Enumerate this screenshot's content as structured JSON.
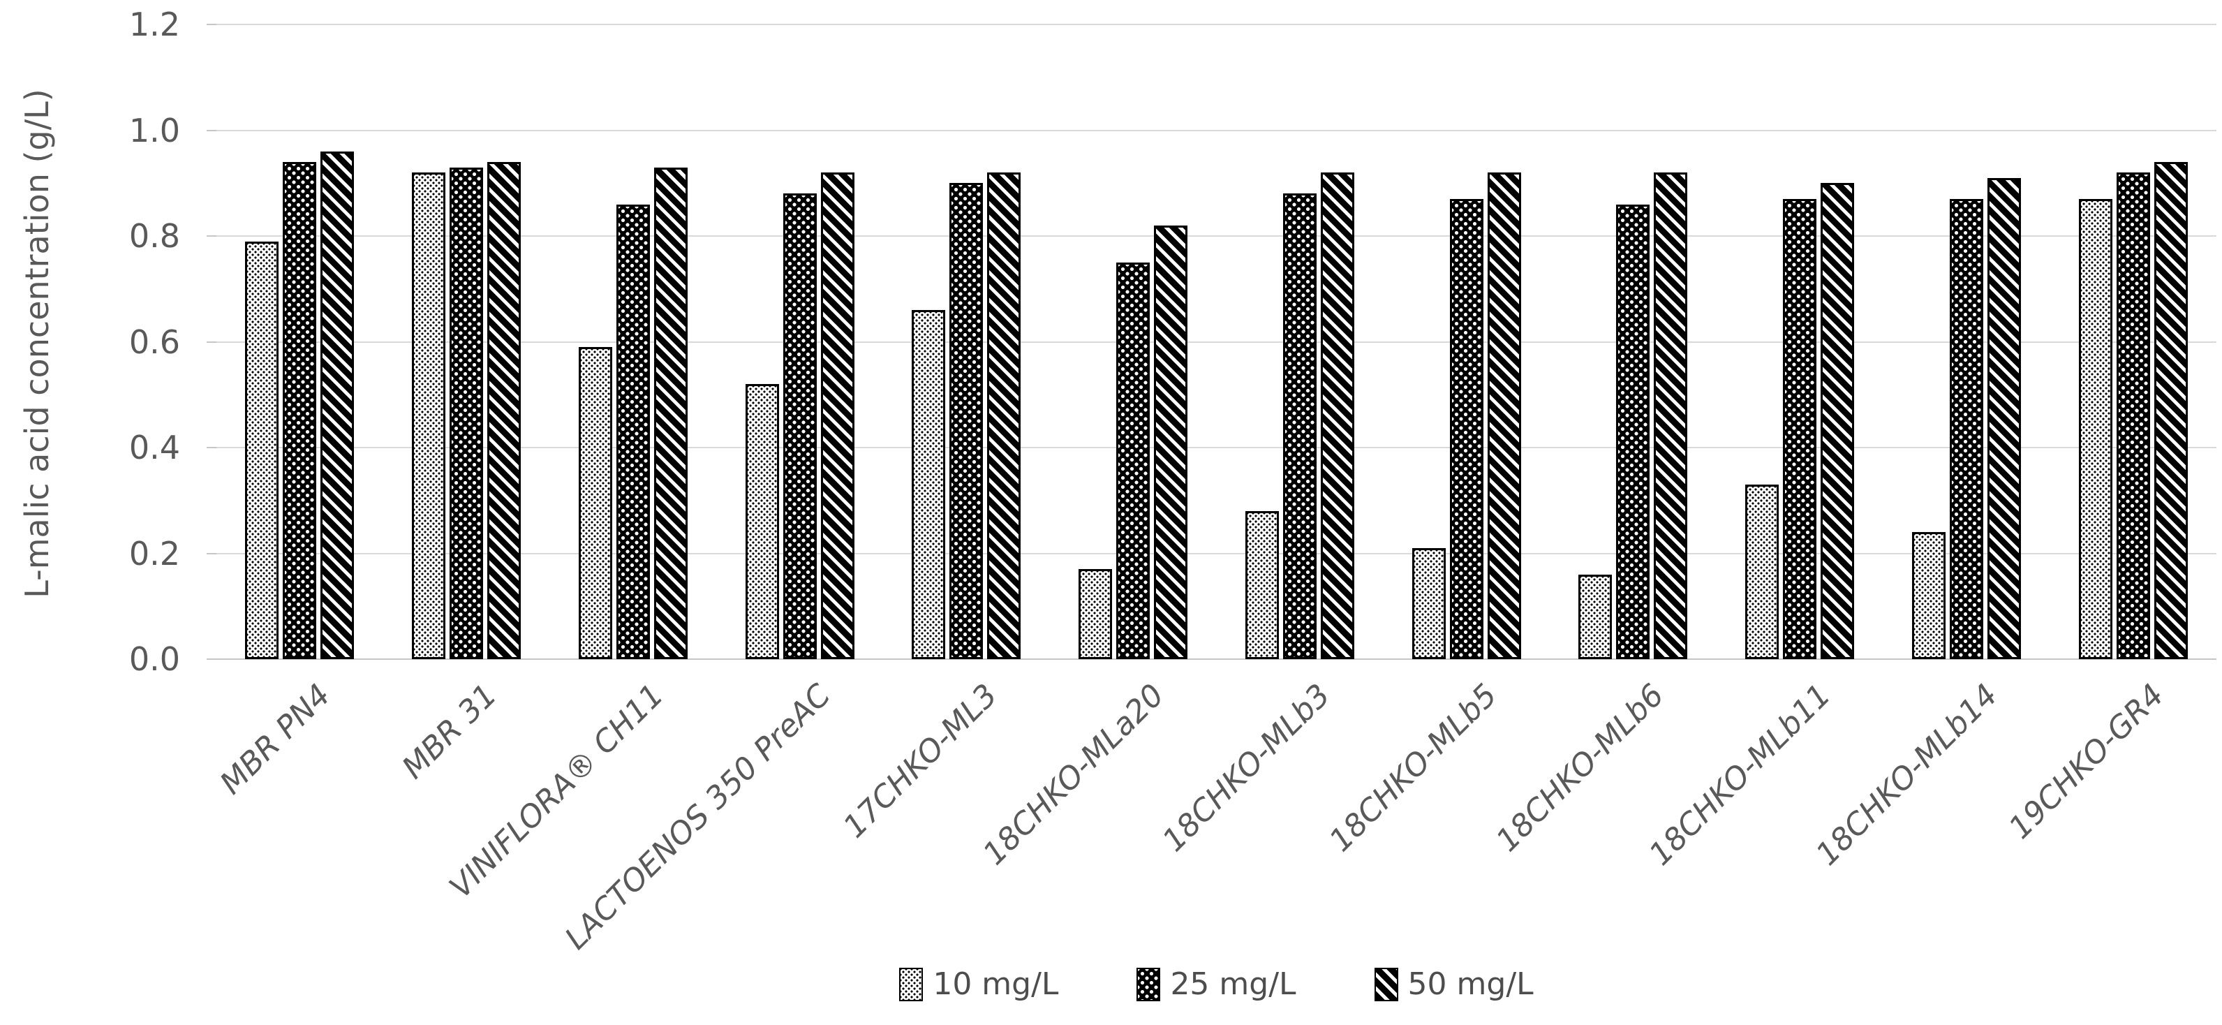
{
  "chart_data": {
    "type": "bar",
    "title": "",
    "xlabel": "",
    "ylabel": "L-malic acid concentration (g/L)",
    "ylim": [
      0,
      1.2
    ],
    "yticks": [
      0,
      0.2,
      0.4,
      0.6,
      0.8,
      1.0,
      1.2
    ],
    "ytick_labels": [
      "0.0",
      "0.2",
      "0.4",
      "0.6",
      "0.8",
      "1.0",
      "1.2"
    ],
    "grid": "horizontal",
    "legend_position": "bottom",
    "categories": [
      "MBR PN4",
      "MBR 31",
      "VINIFLORA® CH11",
      "LACTOENOS 350 PreAC",
      "17CHKO-ML3",
      "18CHKO-MLa20",
      "18CHKO-MLb3",
      "18CHKO-MLb5",
      "18CHKO-MLb6",
      "18CHKO-MLb11",
      "18CHKO-MLb14",
      "19CHKO-GR4"
    ],
    "series": [
      {
        "name": "10 mg/L",
        "pattern": "light-dots",
        "values": [
          0.79,
          0.92,
          0.59,
          0.52,
          0.66,
          0.17,
          0.28,
          0.21,
          0.16,
          0.33,
          0.24,
          0.87
        ]
      },
      {
        "name": "25 mg/L",
        "pattern": "dark-dots",
        "values": [
          0.94,
          0.93,
          0.86,
          0.88,
          0.9,
          0.75,
          0.88,
          0.87,
          0.86,
          0.87,
          0.87,
          0.92
        ]
      },
      {
        "name": "50 mg/L",
        "pattern": "diagonal-stripes",
        "values": [
          0.96,
          0.94,
          0.93,
          0.92,
          0.92,
          0.82,
          0.92,
          0.92,
          0.92,
          0.9,
          0.91,
          0.94
        ]
      }
    ]
  },
  "colors": {
    "text": "#595959",
    "gridline": "#d9d9d9",
    "bar_outline": "#000000",
    "bar_black": "#000000",
    "bar_white": "#ffffff"
  }
}
